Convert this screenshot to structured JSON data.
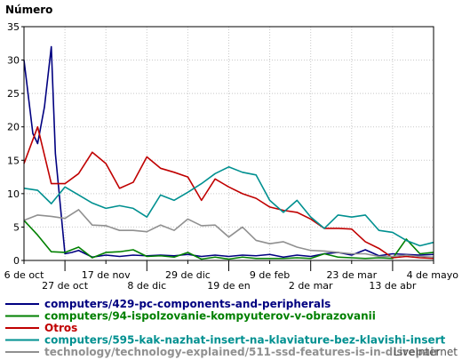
{
  "chart_data": {
    "type": "line",
    "title": "",
    "ylabel": "Número",
    "xlabel": "",
    "ylim": [
      0,
      35
    ],
    "yticks": [
      "0",
      "5",
      "10",
      "15",
      "20",
      "25",
      "30",
      "35"
    ],
    "grid": true,
    "legend_position": "bottom",
    "watermark": "LiveInternet",
    "x_tick_labels": [
      {
        "label": "6 de oct",
        "i": 0,
        "row": 0
      },
      {
        "label": "27 de oct",
        "i": 3,
        "row": 1
      },
      {
        "label": "17 de nov",
        "i": 6,
        "row": 0
      },
      {
        "label": "8 de dic",
        "i": 9,
        "row": 1
      },
      {
        "label": "29 de dic",
        "i": 12,
        "row": 0
      },
      {
        "label": "19 de en",
        "i": 15,
        "row": 1
      },
      {
        "label": "9 de feb",
        "i": 18,
        "row": 0
      },
      {
        "label": "2 de mar",
        "i": 21,
        "row": 1
      },
      {
        "label": "23 de mar",
        "i": 24,
        "row": 0
      },
      {
        "label": "13 de abr",
        "i": 27,
        "row": 1
      },
      {
        "label": "4 de mayo",
        "i": 30,
        "row": 0
      }
    ],
    "series": [
      {
        "name": "computers/429-pc-components-and-peripherals",
        "color": "#000080",
        "points": [
          [
            0,
            30
          ],
          [
            0.65,
            19
          ],
          [
            1,
            17.5
          ],
          [
            1.5,
            23
          ],
          [
            2,
            32
          ],
          [
            2.3,
            16
          ],
          [
            3,
            1
          ],
          [
            3.5,
            1.2
          ],
          [
            4,
            1.5
          ],
          [
            5,
            0.5
          ],
          [
            6,
            0.8
          ],
          [
            7,
            0.6
          ],
          [
            8,
            0.8
          ],
          [
            9,
            0.7
          ],
          [
            10,
            0.8
          ],
          [
            11,
            0.7
          ],
          [
            12,
            0.9
          ],
          [
            13,
            0.6
          ],
          [
            14,
            0.8
          ],
          [
            15,
            0.6
          ],
          [
            16,
            0.8
          ],
          [
            17,
            0.7
          ],
          [
            18,
            0.9
          ],
          [
            19,
            0.5
          ],
          [
            20,
            0.8
          ],
          [
            21,
            0.6
          ],
          [
            22,
            1
          ],
          [
            23,
            1.2
          ],
          [
            24,
            0.8
          ],
          [
            25,
            1.6
          ],
          [
            26,
            0.7
          ],
          [
            27,
            1
          ],
          [
            28,
            0.9
          ],
          [
            29,
            0.8
          ],
          [
            30,
            0.9
          ]
        ]
      },
      {
        "name": "computers/94-ispolzovanie-kompyuterov-v-obrazovanii",
        "color": "#008000",
        "points": [
          [
            0,
            6
          ],
          [
            1,
            3.8
          ],
          [
            2,
            1.3
          ],
          [
            3,
            1.2
          ],
          [
            4,
            2
          ],
          [
            5,
            0.4
          ],
          [
            6,
            1.2
          ],
          [
            7,
            1.3
          ],
          [
            8,
            1.6
          ],
          [
            9,
            0.6
          ],
          [
            10,
            0.7
          ],
          [
            11,
            0.5
          ],
          [
            12,
            1.2
          ],
          [
            13,
            0.2
          ],
          [
            14,
            0.5
          ],
          [
            15,
            0.2
          ],
          [
            16,
            0.5
          ],
          [
            17,
            0.3
          ],
          [
            18,
            0.3
          ],
          [
            19,
            0.3
          ],
          [
            20,
            0.4
          ],
          [
            21,
            0.3
          ],
          [
            22,
            1
          ],
          [
            23,
            0.5
          ],
          [
            24,
            0.4
          ],
          [
            25,
            0.3
          ],
          [
            26,
            0.4
          ],
          [
            27,
            0.3
          ],
          [
            28,
            3.2
          ],
          [
            29,
            1
          ],
          [
            30,
            1.2
          ]
        ]
      },
      {
        "name": "Otros",
        "color": "#c00000",
        "points": [
          [
            0,
            14.5
          ],
          [
            1,
            20
          ],
          [
            2,
            11.5
          ],
          [
            3,
            11.5
          ],
          [
            4,
            13
          ],
          [
            5,
            16.2
          ],
          [
            6,
            14.5
          ],
          [
            7,
            10.8
          ],
          [
            8,
            11.7
          ],
          [
            9,
            15.5
          ],
          [
            10,
            13.8
          ],
          [
            11,
            13.2
          ],
          [
            12,
            12.5
          ],
          [
            13,
            9
          ],
          [
            14,
            12.2
          ],
          [
            15,
            11
          ],
          [
            16,
            10
          ],
          [
            17,
            9.3
          ],
          [
            18,
            8
          ],
          [
            19,
            7.5
          ],
          [
            20,
            7.2
          ],
          [
            21,
            6.2
          ],
          [
            22,
            4.8
          ],
          [
            23,
            4.8
          ],
          [
            24,
            4.7
          ],
          [
            25,
            2.8
          ],
          [
            26,
            1.8
          ],
          [
            27,
            0.4
          ],
          [
            28,
            0.6
          ],
          [
            29,
            0.4
          ],
          [
            30,
            0.3
          ]
        ]
      },
      {
        "name": "computers/595-kak-nazhat-insert-na-klaviature-bez-klavishi-insert",
        "color": "#009090",
        "points": [
          [
            0,
            10.8
          ],
          [
            1,
            10.5
          ],
          [
            2,
            8.5
          ],
          [
            3,
            11
          ],
          [
            4,
            9.8
          ],
          [
            5,
            8.6
          ],
          [
            6,
            7.8
          ],
          [
            7,
            8.2
          ],
          [
            8,
            7.8
          ],
          [
            9,
            6.5
          ],
          [
            10,
            9.8
          ],
          [
            11,
            9
          ],
          [
            12,
            10.2
          ],
          [
            13,
            11.5
          ],
          [
            14,
            13
          ],
          [
            15,
            14
          ],
          [
            16,
            13.2
          ],
          [
            17,
            12.8
          ],
          [
            18,
            9
          ],
          [
            19,
            7.2
          ],
          [
            20,
            9
          ],
          [
            21,
            6.5
          ],
          [
            22,
            4.8
          ],
          [
            23,
            6.8
          ],
          [
            24,
            6.5
          ],
          [
            25,
            6.8
          ],
          [
            26,
            4.5
          ],
          [
            27,
            4.2
          ],
          [
            28,
            3
          ],
          [
            29,
            2.2
          ],
          [
            30,
            2.7
          ]
        ]
      },
      {
        "name": "technology/technology-explained/511-ssd-features-is-in-disrepair",
        "color": "#909090",
        "points": [
          [
            0,
            6
          ],
          [
            1,
            6.8
          ],
          [
            2,
            6.6
          ],
          [
            3,
            6.3
          ],
          [
            4,
            7.6
          ],
          [
            5,
            5.3
          ],
          [
            6,
            5.2
          ],
          [
            7,
            4.5
          ],
          [
            8,
            4.5
          ],
          [
            9,
            4.3
          ],
          [
            10,
            5.3
          ],
          [
            11,
            4.5
          ],
          [
            12,
            6.2
          ],
          [
            13,
            5.2
          ],
          [
            14,
            5.3
          ],
          [
            15,
            3.5
          ],
          [
            16,
            5
          ],
          [
            17,
            3
          ],
          [
            18,
            2.5
          ],
          [
            19,
            2.8
          ],
          [
            20,
            2
          ],
          [
            21,
            1.5
          ],
          [
            22,
            1.4
          ],
          [
            23,
            1.2
          ],
          [
            24,
            1
          ],
          [
            25,
            1
          ],
          [
            26,
            0.6
          ],
          [
            27,
            0.6
          ],
          [
            28,
            0.8
          ],
          [
            29,
            0.6
          ],
          [
            30,
            0.5
          ]
        ]
      }
    ]
  }
}
